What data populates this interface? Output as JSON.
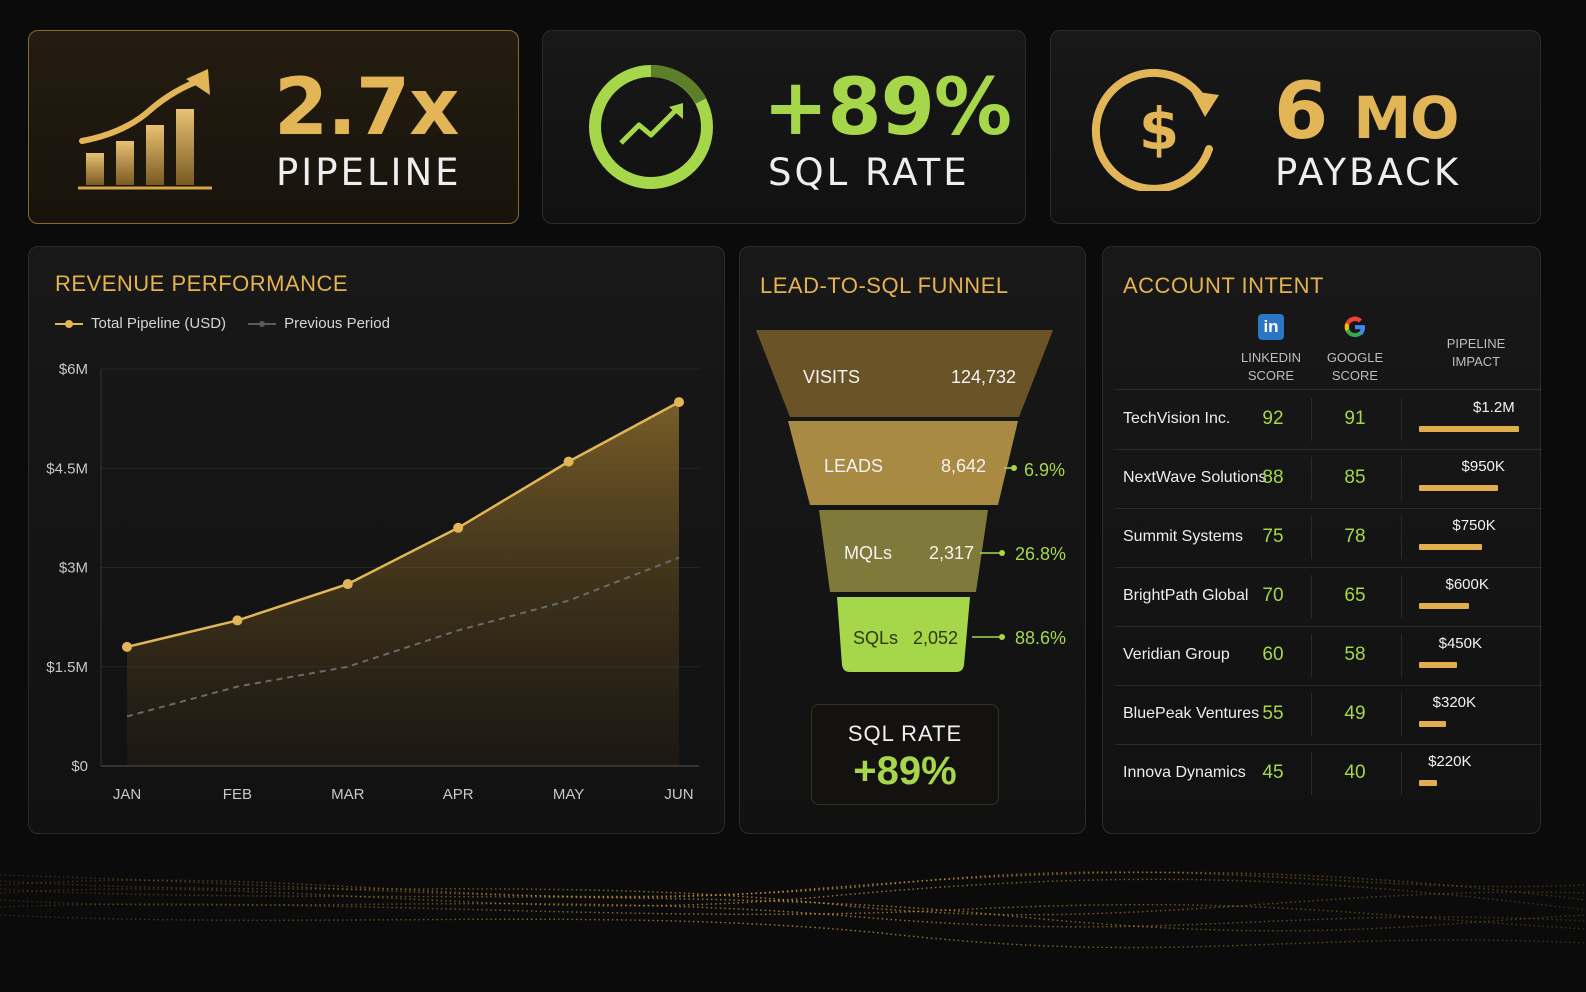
{
  "kpis": [
    {
      "value": "2.7x",
      "label": "PIPELINE",
      "icon": "rising-bars-icon"
    },
    {
      "value": "+89%",
      "label": "SQL RATE",
      "icon": "trend-ring-icon"
    },
    {
      "value_num": "6",
      "value_unit": "MO",
      "label": "PAYBACK",
      "icon": "dollar-cycle-icon"
    }
  ],
  "revenue": {
    "title": "REVENUE PERFORMANCE",
    "legend": [
      "Total Pipeline (USD)",
      "Previous Period"
    ]
  },
  "chart_data": {
    "type": "area",
    "title": "REVENUE PERFORMANCE",
    "categories": [
      "JAN",
      "FEB",
      "MAR",
      "APR",
      "MAY",
      "JUN"
    ],
    "y_ticks": [
      "$0",
      "$1.5M",
      "$3M",
      "$4.5M",
      "$6M"
    ],
    "ylim": [
      0,
      6
    ],
    "series": [
      {
        "name": "Total Pipeline (USD)",
        "values": [
          1.8,
          2.2,
          2.75,
          3.6,
          4.6,
          5.5
        ],
        "color": "#e2b657"
      },
      {
        "name": "Previous Period",
        "values": [
          0.75,
          1.2,
          1.5,
          2.05,
          2.5,
          3.15
        ],
        "color": "#6a6a6a"
      }
    ],
    "grid": true,
    "legend_position": "top-left"
  },
  "funnel": {
    "title": "LEAD-TO-SQL FUNNEL",
    "stages": [
      {
        "label": "VISITS",
        "value": "124,732",
        "pct": ""
      },
      {
        "label": "LEADS",
        "value": "8,642",
        "pct": "6.9%"
      },
      {
        "label": "MQLs",
        "value": "2,317",
        "pct": "26.8%"
      },
      {
        "label": "SQLs",
        "value": "2,052",
        "pct": "88.6%"
      }
    ],
    "sql_rate_label": "SQL RATE",
    "sql_rate_value": "+89%"
  },
  "intent": {
    "title": "ACCOUNT INTENT",
    "headers": {
      "linkedin_1": "LINKEDIN",
      "linkedin_2": "SCORE",
      "google_1": "GOOGLE",
      "google_2": "SCORE",
      "impact_1": "PIPELINE",
      "impact_2": "IMPACT"
    },
    "rows": [
      {
        "name": "TechVision Inc.",
        "linkedin": "92",
        "google": "91",
        "impact": "$1.2M",
        "impact_m": 1.2
      },
      {
        "name": "NextWave Solutions",
        "linkedin": "88",
        "google": "85",
        "impact": "$950K",
        "impact_m": 0.95
      },
      {
        "name": "Summit Systems",
        "linkedin": "75",
        "google": "78",
        "impact": "$750K",
        "impact_m": 0.75
      },
      {
        "name": "BrightPath Global",
        "linkedin": "70",
        "google": "65",
        "impact": "$600K",
        "impact_m": 0.6
      },
      {
        "name": "Veridian Group",
        "linkedin": "60",
        "google": "58",
        "impact": "$450K",
        "impact_m": 0.45
      },
      {
        "name": "BluePeak Ventures",
        "linkedin": "55",
        "google": "49",
        "impact": "$320K",
        "impact_m": 0.32
      },
      {
        "name": "Innova Dynamics",
        "linkedin": "45",
        "google": "40",
        "impact": "$220K",
        "impact_m": 0.22
      }
    ]
  }
}
